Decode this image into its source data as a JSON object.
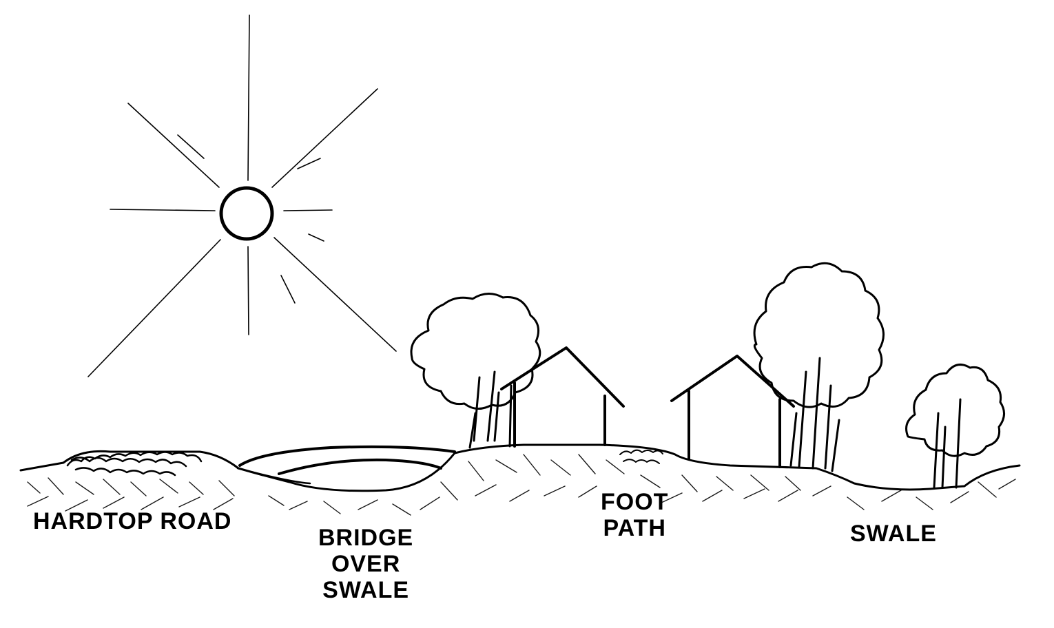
{
  "colors": {
    "ink": "#000000",
    "background": "#ffffff"
  },
  "labels": {
    "hardtop_road": "HARDTOP ROAD",
    "bridge": [
      "BRIDGE",
      "OVER",
      "SWALE"
    ],
    "foot_path": [
      "FOOT",
      "PATH"
    ],
    "swale": "SWALE"
  }
}
